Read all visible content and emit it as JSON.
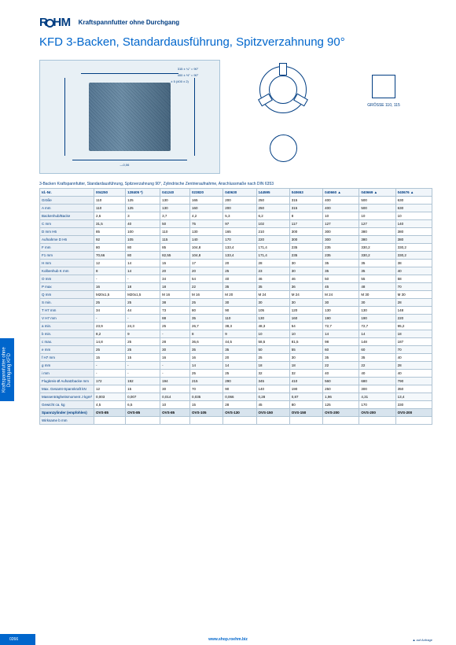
{
  "brand": "RÖHM",
  "header_subtitle": "Kraftspannfutter ohne Durchgang",
  "title": "KFD 3-Backen, Standardausführung, Spitzverzahnung 90°",
  "fig_annotations": {
    "angle1": "315 ± ¼° = 90°",
    "angle2": "400 ± ½° = 90°",
    "tol": "± 5 (400 ± 2)",
    "h6": "—0,06",
    "sizes": "GRÖSSE 110, 115"
  },
  "table_desc": "3-Backen Kraftspannfutter, Standardausführung, Spitzverzahnung 90°, Zylindrische Zentrieraufnahme, Anschlussmaße nach DIN 6353",
  "columns": [
    "Id.-Nr.",
    "004250",
    "128405 *)",
    "041240",
    "023820",
    "040630",
    "144595",
    "040653",
    "040660 ▲",
    "040669 ▲",
    "040676 ▲"
  ],
  "row_labels": [
    "Größe",
    "A mm",
    "Backenhub/Backe",
    "C mm",
    "D mm H6",
    "Aufnahme D H6",
    "F mm",
    "F1 mm",
    "H mm",
    "Kolbenhub K mm",
    "O mm",
    "P max",
    "Q mm",
    "S min.",
    "T H7 mm",
    "V H7 mm",
    "a min.",
    "b min.",
    "c max.",
    "e mm",
    "f H7 mm",
    "g mm",
    "i mm",
    "Flugkreis-Ø Aufsatzbacke mm",
    "Max. Gesamt-Spannkraft kN",
    "Massenträgheitsmoment J kgm²",
    "Gewicht ca. kg",
    "Spannzylinder (empfohlen)",
    "Wirksame b mm"
  ],
  "rows": [
    [
      "110",
      "125",
      "130",
      "165",
      "200",
      "250",
      "315",
      "400",
      "500",
      "630"
    ],
    [
      "110",
      "125",
      "130",
      "160",
      "200",
      "250",
      "315",
      "400",
      "500",
      "630"
    ],
    [
      "2,6",
      "3",
      "3,7",
      "4,2",
      "5,3",
      "6,2",
      "8",
      "10",
      "10",
      "10"
    ],
    [
      "31,5",
      "40",
      "50",
      "75",
      "97",
      "102",
      "117",
      "127",
      "127",
      "140"
    ],
    [
      "85",
      "100",
      "110",
      "130",
      "165",
      "210",
      "300",
      "300",
      "380",
      "380"
    ],
    [
      "92",
      "105",
      "115",
      "140",
      "170",
      "220",
      "300",
      "300",
      "380",
      "380"
    ],
    [
      "80",
      "80",
      "85",
      "104,8",
      "133,4",
      "171,4",
      "235",
      "235",
      "330,2",
      "330,2"
    ],
    [
      "70,66",
      "80",
      "82,55",
      "104,8",
      "133,4",
      "171,4",
      "235",
      "235",
      "330,2",
      "330,2"
    ],
    [
      "12",
      "14",
      "15",
      "17",
      "20",
      "28",
      "30",
      "35",
      "35",
      "38"
    ],
    [
      "8",
      "14",
      "20",
      "20",
      "25",
      "23",
      "30",
      "35",
      "35",
      "40"
    ],
    [
      "-",
      "-",
      "34",
      "54",
      "40",
      "46",
      "46",
      "50",
      "55",
      "58"
    ],
    [
      "16",
      "18",
      "18",
      "22",
      "35",
      "35",
      "36",
      "45",
      "48",
      "70"
    ],
    [
      "M20x1,5",
      "M20x1,5",
      "M 16",
      "M 16",
      "M 20",
      "M 24",
      "M 24",
      "M 24",
      "M 30",
      "M 30"
    ],
    [
      "25",
      "25",
      "38",
      "25",
      "30",
      "30",
      "30",
      "30",
      "30",
      "28"
    ],
    [
      "34",
      "44",
      "73",
      "80",
      "90",
      "105",
      "120",
      "130",
      "130",
      "148"
    ],
    [
      "-",
      "-",
      "88",
      "35",
      "110",
      "130",
      "160",
      "190",
      "190",
      "220"
    ],
    [
      "23,9",
      "24,3",
      "25",
      "26,7",
      "38,3",
      "48,3",
      "54",
      "72,7",
      "72,7",
      "95,2"
    ],
    [
      "8,2",
      "9",
      "-",
      "8",
      "9",
      "10",
      "10",
      "14",
      "14",
      "18"
    ],
    [
      "14,8",
      "25",
      "28",
      "36,6",
      "44,5",
      "58,5",
      "81,5",
      "98",
      "148",
      "187"
    ],
    [
      "25",
      "25",
      "30",
      "35",
      "35",
      "50",
      "55",
      "60",
      "60",
      "70"
    ],
    [
      "15",
      "15",
      "16",
      "16",
      "20",
      "25",
      "30",
      "35",
      "35",
      "40"
    ],
    [
      "-",
      "-",
      "-",
      "14",
      "14",
      "18",
      "18",
      "22",
      "22",
      "28"
    ],
    [
      "-",
      "-",
      "-",
      "25",
      "25",
      "32",
      "32",
      "40",
      "40",
      "40"
    ],
    [
      "172",
      "192",
      "194",
      "215",
      "290",
      "345",
      "410",
      "560",
      "680",
      "790"
    ],
    [
      "12",
      "15",
      "30",
      "70",
      "90",
      "140",
      "190",
      "250",
      "300",
      "350"
    ],
    [
      "0,003",
      "0,007",
      "0,014",
      "0,035",
      "0,066",
      "0,28",
      "0,87",
      "1,96",
      "4,31",
      "13,4"
    ],
    [
      "4,5",
      "6,5",
      "10",
      "15",
      "28",
      "45",
      "80",
      "125",
      "170",
      "330"
    ],
    [
      "OVS-85",
      "OVS-85",
      "OVS-85",
      "OVS-105",
      "OVS-130",
      "OVS-150",
      "OVS-150",
      "OVS-200",
      "OVS-200",
      "OVS-200"
    ],
    [
      "",
      "",
      "",
      "",
      "",
      "",
      "",
      "",
      "",
      ""
    ]
  ],
  "sidetab": "Kraftspannfutter ohne Durchgang KFD",
  "footer_page": "0266",
  "footer_url": "www.shop.roehm.biz",
  "footer_note": "▲  auf Anfrage",
  "colors": {
    "brand": "#003d82",
    "accent": "#0066cc",
    "grid": "#b0c4d4",
    "row_alt": "#f4f8fb",
    "head_bg": "#f0f5fa"
  }
}
